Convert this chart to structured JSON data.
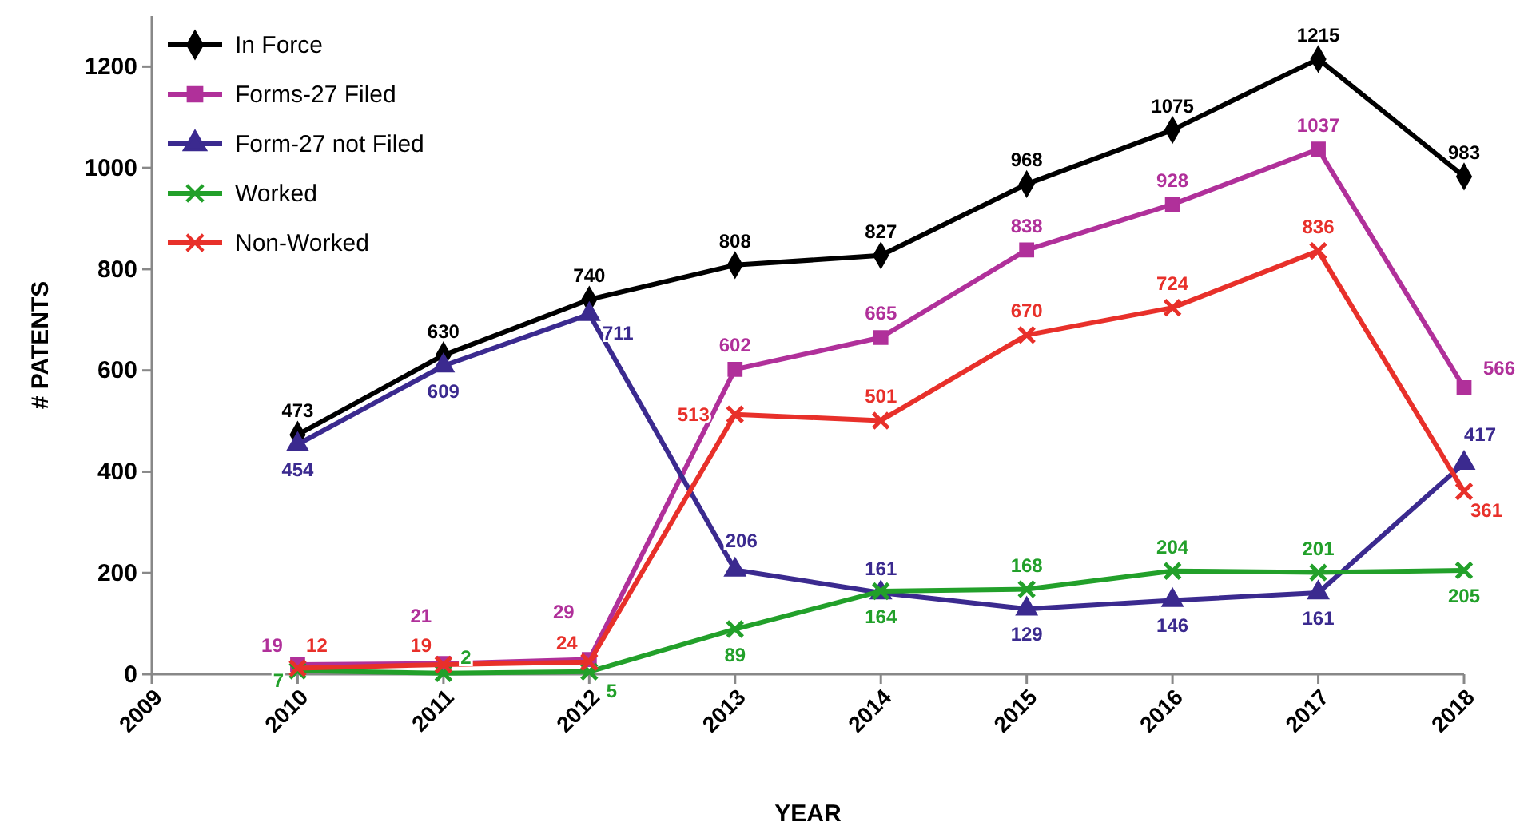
{
  "chart_data": {
    "type": "line",
    "xlabel": "YEAR",
    "ylabel": "# PATENTS",
    "x": [
      2010,
      2011,
      2012,
      2013,
      2014,
      2015,
      2016,
      2017,
      2018
    ],
    "xlim": [
      2009,
      2018
    ],
    "xticks": [
      2009,
      2010,
      2011,
      2012,
      2013,
      2014,
      2015,
      2016,
      2017,
      2018
    ],
    "ylim": [
      0,
      1300
    ],
    "yticks": [
      0,
      200,
      400,
      600,
      800,
      1000,
      1200
    ],
    "grid": false,
    "legend": "top left",
    "data_labels": true,
    "line_style": "solid",
    "series": [
      {
        "name": "In Force",
        "color": "#000000",
        "marker": "diamond",
        "values": [
          473,
          630,
          740,
          808,
          827,
          968,
          1075,
          1215,
          983
        ]
      },
      {
        "name": "Forms-27 Filed",
        "color": "#b0309a",
        "marker": "square",
        "values": [
          19,
          21,
          29,
          602,
          665,
          838,
          928,
          1037,
          566
        ]
      },
      {
        "name": "Form-27 not Filed",
        "color": "#3b2a8f",
        "marker": "triangle",
        "values": [
          454,
          609,
          711,
          206,
          161,
          129,
          146,
          161,
          417
        ]
      },
      {
        "name": "Worked",
        "color": "#22a02a",
        "marker": "cross",
        "values": [
          7,
          2,
          5,
          89,
          164,
          168,
          204,
          201,
          205
        ]
      },
      {
        "name": "Non-Worked",
        "color": "#e8302a",
        "marker": "cross",
        "values": [
          12,
          19,
          24,
          513,
          501,
          670,
          724,
          836,
          361
        ]
      }
    ]
  }
}
